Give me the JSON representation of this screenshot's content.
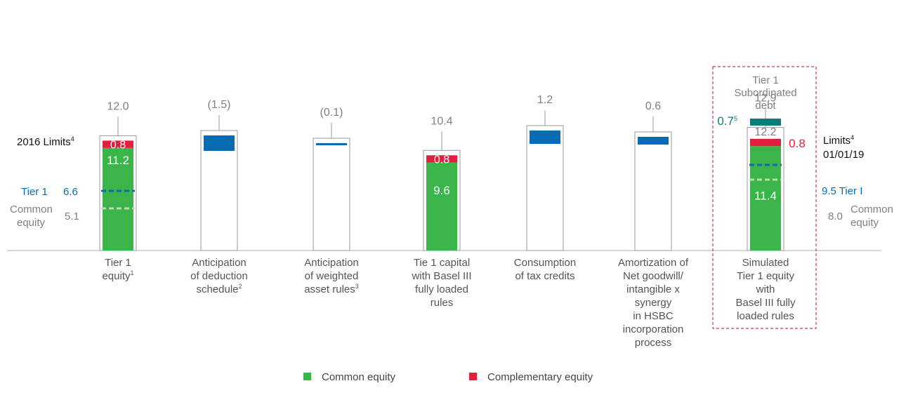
{
  "colors": {
    "common": "#3bb54a",
    "complementary": "#e41e3f",
    "blue": "#0a6bb5",
    "teal": "#0b7a78",
    "grey": "#7f7f7f",
    "outline": "#9a9a9a",
    "dashed_box": "#c8336a",
    "common_line": "#b7ddb0"
  },
  "chart_data": {
    "type": "bar",
    "subtype": "waterfall",
    "categories": [
      {
        "id": "tier1-equity",
        "label_lines": [
          "Tier 1",
          "equity"
        ],
        "superscript": "1"
      },
      {
        "id": "deduction",
        "label_lines": [
          "Anticipation",
          "of deduction",
          "schedule"
        ],
        "superscript": "2"
      },
      {
        "id": "weighted",
        "label_lines": [
          "Anticipation",
          "of weighted",
          "asset rules"
        ],
        "superscript": "3"
      },
      {
        "id": "basel",
        "label_lines": [
          "Tie 1 capital",
          "with Basel III",
          "fully loaded",
          "rules"
        ],
        "superscript": ""
      },
      {
        "id": "tax",
        "label_lines": [
          "Consumption",
          "of tax credits"
        ],
        "superscript": ""
      },
      {
        "id": "goodwill",
        "label_lines": [
          "Amortization of",
          "Net goodwill/",
          "intangible x",
          "synergy",
          "in HSBC",
          "incorporation",
          "process"
        ],
        "superscript": ""
      },
      {
        "id": "simulated",
        "label_lines": [
          "Simulated",
          "Tier 1 equity",
          "with",
          "Basel III fully",
          "loaded rules"
        ],
        "superscript": ""
      }
    ],
    "stacked": [
      {
        "category": "tier1-equity",
        "total_label": "12.0",
        "total": 12.0,
        "common": 11.2,
        "common_label": "11.2",
        "complementary": 0.8,
        "complementary_label": "0.8"
      },
      {
        "category": "basel",
        "total_label": "10.4",
        "total": 10.4,
        "common": 9.6,
        "common_label": "9.6",
        "complementary": 0.8,
        "complementary_label": "0.8"
      },
      {
        "category": "simulated",
        "total_label": "12.9",
        "total": 12.9,
        "common": 11.4,
        "common_label": "11.4",
        "complementary": 0.8,
        "complementary_label": "0.8",
        "subtotal_label": "12.2",
        "subordinated": 0.7,
        "subordinated_label": "0.7",
        "subordinated_sup": "5"
      }
    ],
    "deltas": [
      {
        "category": "deduction",
        "value": -1.5,
        "label": "(1.5)"
      },
      {
        "category": "weighted",
        "value": -0.1,
        "label": "(0.1)"
      },
      {
        "category": "tax",
        "value": 1.2,
        "label": "1.2"
      },
      {
        "category": "goodwill",
        "value": 0.6,
        "label": "0.6"
      }
    ],
    "limits_2016": {
      "title": "2016 Limits",
      "title_sup": "4",
      "tier1_label": "Tier 1",
      "tier1_value": 6.6,
      "tier1_value_label": "6.6",
      "common_label_lines": [
        "Common",
        "equity"
      ],
      "common_value": 5.1,
      "common_value_label": "5.1"
    },
    "limits_2019": {
      "title_lines": [
        "Limits",
        "01/01/19"
      ],
      "title_sup": "4",
      "tier1_label": "9.5 Tier I",
      "tier1_value": 9.5,
      "common_value_label": "8.0",
      "common_value": 8.0,
      "common_label_lines": [
        "Common",
        "equity"
      ]
    },
    "subordinated_box_title_lines": [
      "Tier 1",
      "Subordinated",
      "debt"
    ],
    "legend": [
      {
        "key": "common",
        "label": "Common equity"
      },
      {
        "key": "complementary",
        "label": "Complementary equity"
      }
    ],
    "ylim": [
      0,
      13.5
    ],
    "grid": false,
    "legend_position": "bottom"
  }
}
